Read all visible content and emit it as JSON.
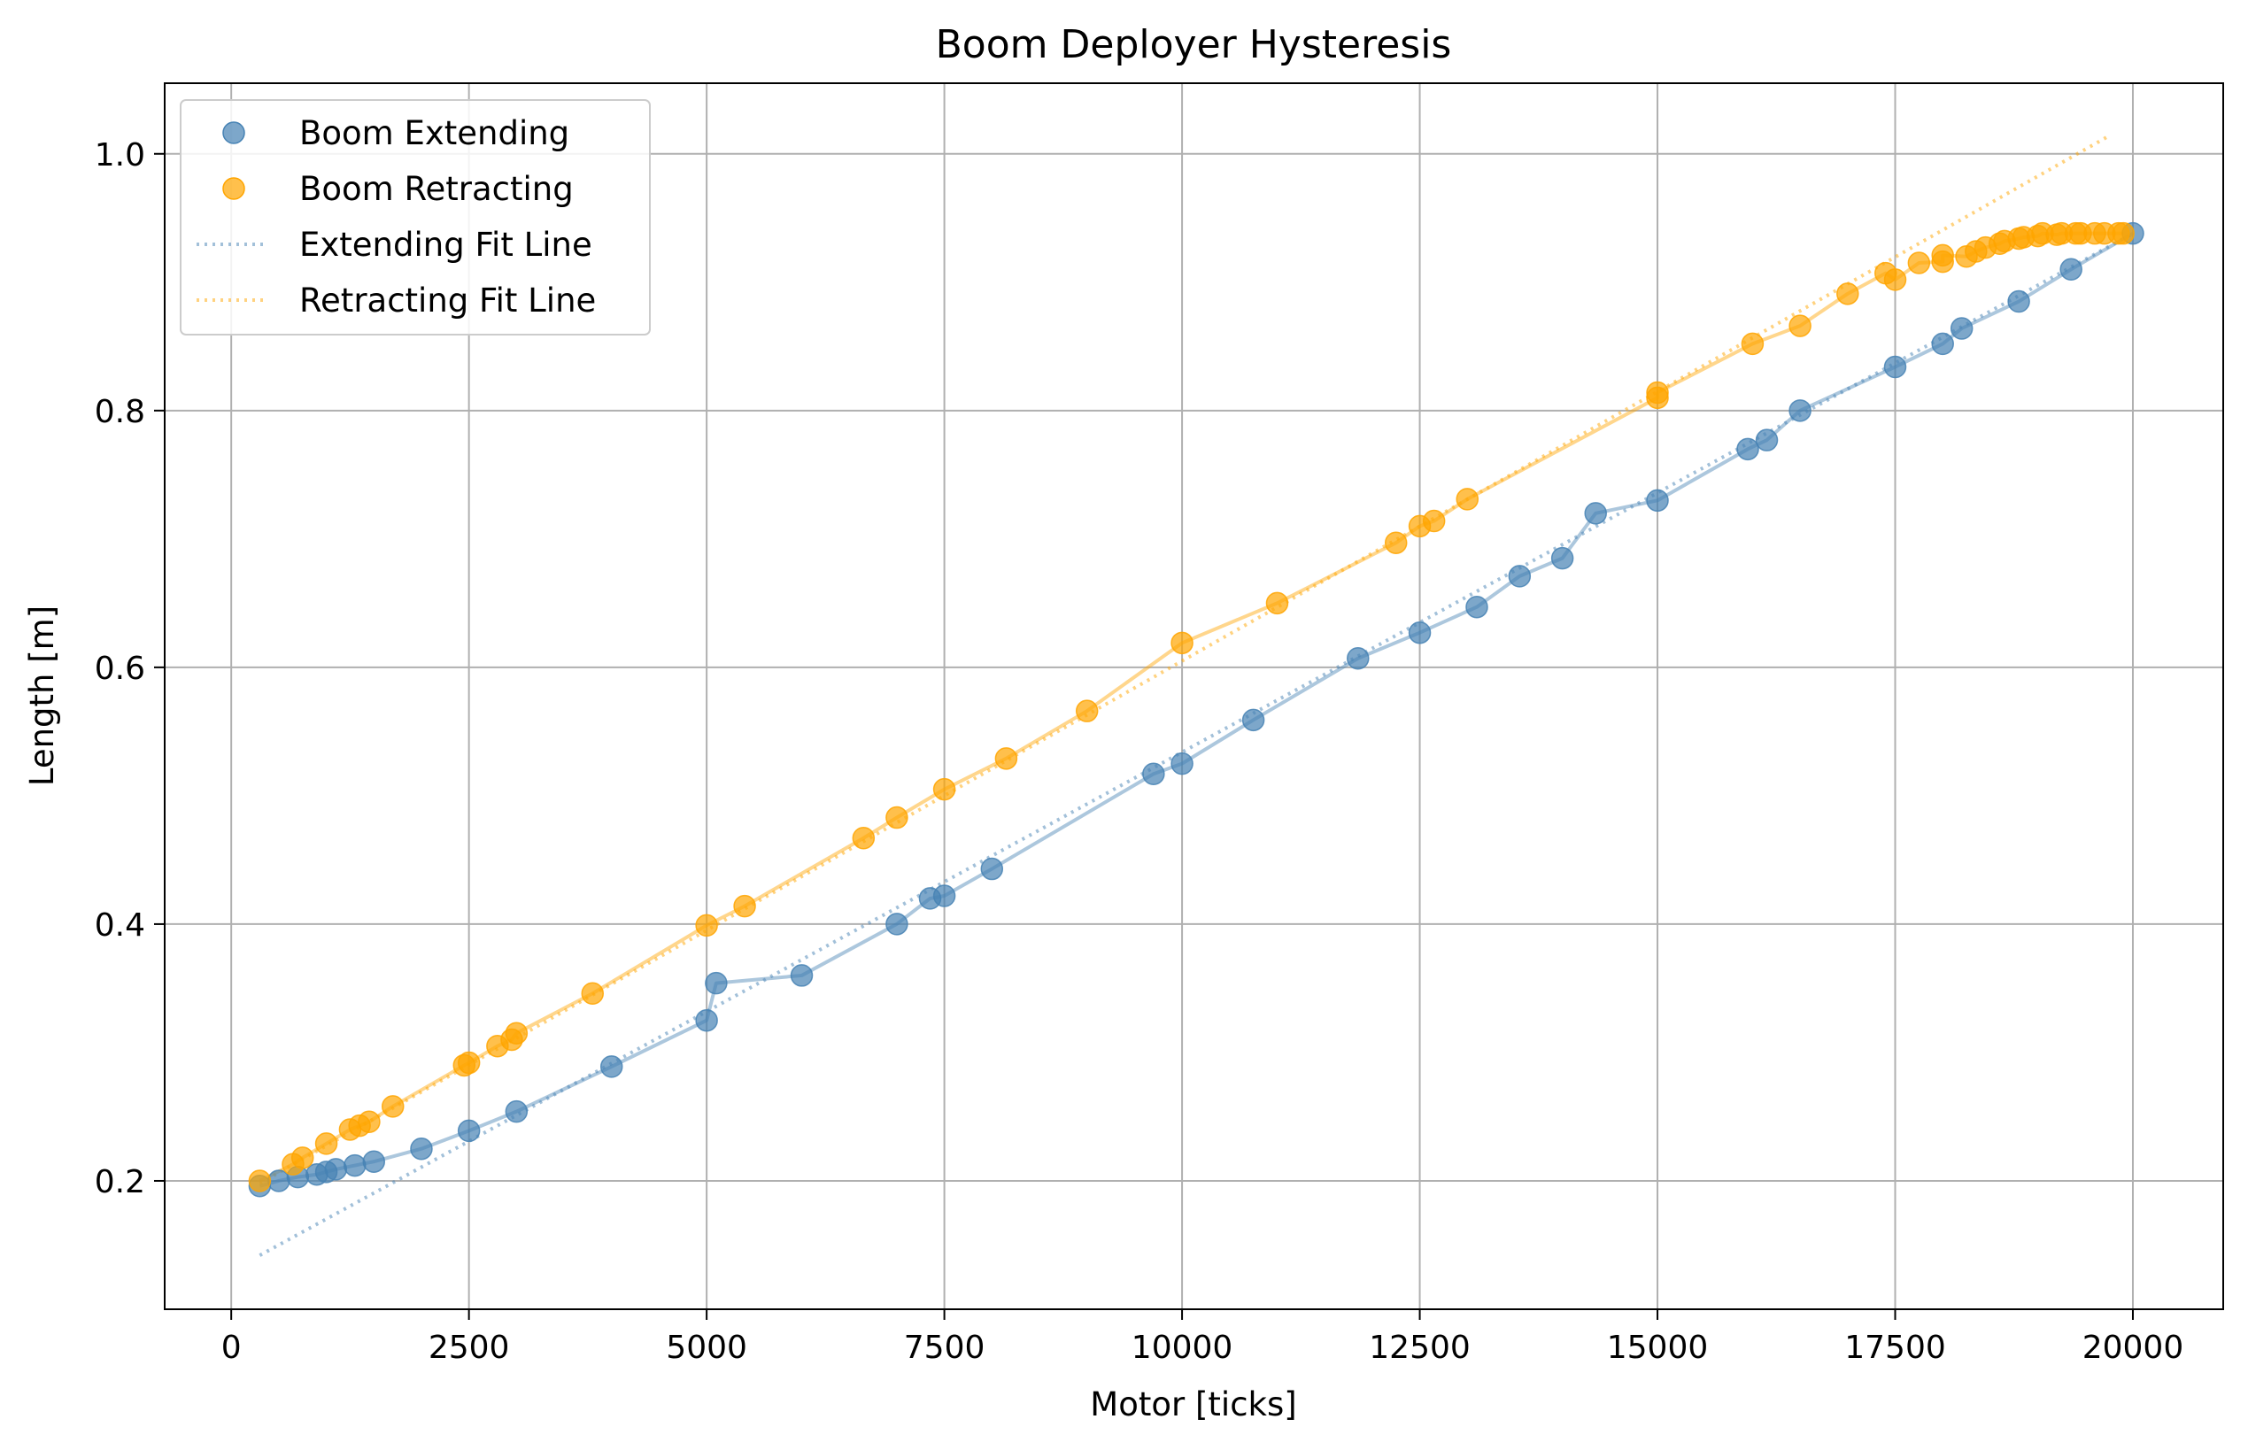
{
  "chart_data": {
    "type": "scatter",
    "title": "Boom Deployer Hysteresis",
    "xlabel": "Motor [ticks]",
    "ylabel": "Length [m]",
    "xlim": [
      -700,
      20950
    ],
    "ylim": [
      0.1,
      1.055
    ],
    "xticks": [
      0,
      2500,
      5000,
      7500,
      10000,
      12500,
      15000,
      17500,
      20000
    ],
    "yticks": [
      0.2,
      0.4,
      0.6,
      0.8,
      1.0
    ],
    "xtick_labels": [
      "0",
      "2500",
      "5000",
      "7500",
      "10000",
      "12500",
      "15000",
      "17500",
      "20000"
    ],
    "ytick_labels": [
      "0.2",
      "0.4",
      "0.6",
      "0.8",
      "1.0"
    ],
    "grid": true,
    "legend_position": "top-left",
    "colors": {
      "extending": "#4682b4",
      "retracting": "#ffa500"
    },
    "series": [
      {
        "name": "Boom Extending",
        "kind": "scatter",
        "color": "#4682b4",
        "points": [
          [
            300,
            0.196
          ],
          [
            500,
            0.2
          ],
          [
            700,
            0.203
          ],
          [
            900,
            0.205
          ],
          [
            1000,
            0.207
          ],
          [
            1100,
            0.209
          ],
          [
            1300,
            0.212
          ],
          [
            1500,
            0.215
          ],
          [
            2000,
            0.225
          ],
          [
            2500,
            0.239
          ],
          [
            3000,
            0.254
          ],
          [
            4000,
            0.289
          ],
          [
            5000,
            0.325
          ],
          [
            5100,
            0.354
          ],
          [
            6000,
            0.36
          ],
          [
            7000,
            0.4
          ],
          [
            7350,
            0.42
          ],
          [
            7500,
            0.422
          ],
          [
            8000,
            0.443
          ],
          [
            9700,
            0.517
          ],
          [
            10000,
            0.525
          ],
          [
            10750,
            0.559
          ],
          [
            11850,
            0.607
          ],
          [
            12500,
            0.627
          ],
          [
            13100,
            0.647
          ],
          [
            13550,
            0.671
          ],
          [
            14000,
            0.685
          ],
          [
            14350,
            0.72
          ],
          [
            15000,
            0.73
          ],
          [
            15950,
            0.77
          ],
          [
            16150,
            0.777
          ],
          [
            16500,
            0.8
          ],
          [
            17500,
            0.834
          ],
          [
            18000,
            0.852
          ],
          [
            18200,
            0.864
          ],
          [
            18800,
            0.885
          ],
          [
            19350,
            0.91
          ],
          [
            20000,
            0.938
          ]
        ]
      },
      {
        "name": "Boom Retracting",
        "kind": "scatter",
        "color": "#ffa500",
        "points": [
          [
            300,
            0.2
          ],
          [
            650,
            0.213
          ],
          [
            750,
            0.218
          ],
          [
            1000,
            0.229
          ],
          [
            1250,
            0.24
          ],
          [
            1350,
            0.243
          ],
          [
            1450,
            0.246
          ],
          [
            1700,
            0.258
          ],
          [
            2450,
            0.29
          ],
          [
            2500,
            0.292
          ],
          [
            2800,
            0.305
          ],
          [
            2950,
            0.31
          ],
          [
            3000,
            0.315
          ],
          [
            3800,
            0.346
          ],
          [
            5000,
            0.399
          ],
          [
            5400,
            0.414
          ],
          [
            6650,
            0.467
          ],
          [
            7000,
            0.483
          ],
          [
            7500,
            0.505
          ],
          [
            8150,
            0.529
          ],
          [
            9000,
            0.566
          ],
          [
            10000,
            0.619
          ],
          [
            11000,
            0.65
          ],
          [
            12250,
            0.697
          ],
          [
            12500,
            0.71
          ],
          [
            12650,
            0.714
          ],
          [
            13000,
            0.731
          ],
          [
            15000,
            0.81
          ],
          [
            15000,
            0.814
          ],
          [
            16000,
            0.852
          ],
          [
            16500,
            0.866
          ],
          [
            17000,
            0.891
          ],
          [
            17400,
            0.907
          ],
          [
            17500,
            0.902
          ],
          [
            17750,
            0.915
          ],
          [
            18000,
            0.916
          ],
          [
            18000,
            0.921
          ],
          [
            18250,
            0.92
          ],
          [
            18350,
            0.924
          ],
          [
            18450,
            0.927
          ],
          [
            18600,
            0.93
          ],
          [
            18650,
            0.932
          ],
          [
            18800,
            0.934
          ],
          [
            18850,
            0.935
          ],
          [
            19000,
            0.936
          ],
          [
            19050,
            0.938
          ],
          [
            19200,
            0.937
          ],
          [
            19250,
            0.938
          ],
          [
            19400,
            0.938
          ],
          [
            19450,
            0.938
          ],
          [
            19600,
            0.938
          ],
          [
            19700,
            0.938
          ],
          [
            19850,
            0.938
          ],
          [
            19900,
            0.938
          ]
        ]
      },
      {
        "name": "Extending Fit Line",
        "kind": "fit-line",
        "color": "#4682b4",
        "style": "dotted",
        "start": [
          300,
          0.142
        ],
        "end": [
          20000,
          0.938
        ]
      },
      {
        "name": "Retracting Fit Line",
        "kind": "fit-line",
        "color": "#ffa500",
        "style": "dotted",
        "start": [
          300,
          0.198
        ],
        "end": [
          19750,
          1.014
        ]
      }
    ]
  }
}
